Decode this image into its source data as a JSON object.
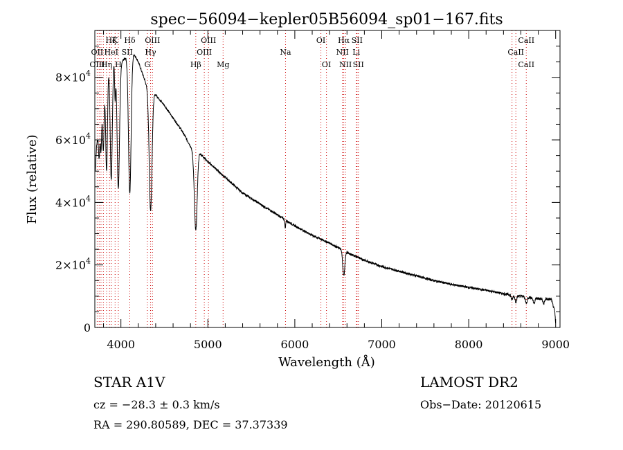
{
  "chart_data": {
    "type": "line",
    "title": "spec−56094−kepler05B56094_sp01−167.fits",
    "xlabel": "Wavelength (Å)",
    "ylabel": "Flux (relative)",
    "xlim": [
      3700,
      9050
    ],
    "ylim": [
      0,
      95000
    ],
    "x_ticks": [
      4000,
      5000,
      6000,
      7000,
      8000,
      9000
    ],
    "x_tick_labels": [
      "4000",
      "5000",
      "6000",
      "7000",
      "8000",
      "9000"
    ],
    "y_ticks": [
      0,
      20000,
      40000,
      60000,
      80000
    ],
    "y_tick_labels": [
      {
        "mant": "0",
        "exp": ""
      },
      {
        "mant": "2×10",
        "exp": "4"
      },
      {
        "mant": "4×10",
        "exp": "4"
      },
      {
        "mant": "6×10",
        "exp": "4"
      },
      {
        "mant": "8×10",
        "exp": "4"
      }
    ],
    "grid": false,
    "line_color": "#000000",
    "line_marker_color": "#cc0000",
    "continuum": [
      [
        3705,
        50000
      ],
      [
        3720,
        58000
      ],
      [
        3740,
        62000
      ],
      [
        3760,
        66000
      ],
      [
        3790,
        72000
      ],
      [
        3820,
        78000
      ],
      [
        3850,
        82000
      ],
      [
        3880,
        85000
      ],
      [
        3920,
        86000
      ],
      [
        3950,
        86000
      ],
      [
        4000,
        85000
      ],
      [
        4050,
        86000
      ],
      [
        4100,
        87000
      ],
      [
        4150,
        87500
      ],
      [
        4200,
        85000
      ],
      [
        4250,
        81000
      ],
      [
        4300,
        77000
      ],
      [
        4350,
        75000
      ],
      [
        4400,
        74500
      ],
      [
        4500,
        71000
      ],
      [
        4600,
        67000
      ],
      [
        4700,
        63000
      ],
      [
        4800,
        58000
      ],
      [
        4830,
        56000
      ],
      [
        4900,
        56000
      ],
      [
        5000,
        53000
      ],
      [
        5100,
        50500
      ],
      [
        5200,
        48000
      ],
      [
        5400,
        43000
      ],
      [
        5600,
        39500
      ],
      [
        5800,
        36000
      ],
      [
        6000,
        32500
      ],
      [
        6200,
        29500
      ],
      [
        6400,
        27000
      ],
      [
        6600,
        24000
      ],
      [
        6800,
        21500
      ],
      [
        7000,
        19500
      ],
      [
        7200,
        18000
      ],
      [
        7400,
        16500
      ],
      [
        7600,
        15000
      ],
      [
        7800,
        13800
      ],
      [
        8000,
        12800
      ],
      [
        8200,
        11900
      ],
      [
        8400,
        10800
      ],
      [
        8600,
        10000
      ],
      [
        8800,
        9200
      ],
      [
        8950,
        9000
      ],
      [
        8990,
        5000
      ],
      [
        9000,
        1000
      ]
    ],
    "absorption_lines": [
      {
        "center": 3750,
        "depth": 10000,
        "width": 7
      },
      {
        "center": 3771,
        "depth": 12000,
        "width": 7
      },
      {
        "center": 3798,
        "depth": 17000,
        "width": 8
      },
      {
        "center": 3835,
        "depth": 30000,
        "width": 10
      },
      {
        "center": 3889,
        "depth": 38000,
        "width": 12
      },
      {
        "center": 3933,
        "depth": 12000,
        "width": 6
      },
      {
        "center": 3970,
        "depth": 41000,
        "width": 14
      },
      {
        "center": 4102,
        "depth": 44000,
        "width": 15
      },
      {
        "center": 4341,
        "depth": 38000,
        "width": 16
      },
      {
        "center": 4861,
        "depth": 25000,
        "width": 16
      },
      {
        "center": 5890,
        "depth": 2500,
        "width": 5
      },
      {
        "center": 6563,
        "depth": 8000,
        "width": 12
      },
      {
        "center": 8498,
        "depth": 1500,
        "width": 10
      },
      {
        "center": 8542,
        "depth": 2000,
        "width": 10
      },
      {
        "center": 8662,
        "depth": 2000,
        "width": 10
      },
      {
        "center": 8750,
        "depth": 1500,
        "width": 10
      },
      {
        "center": 8862,
        "depth": 1500,
        "width": 10
      }
    ],
    "line_markers": [
      3727,
      3750,
      3771,
      3798,
      3835,
      3869,
      3889,
      3933,
      3970,
      4102,
      4304,
      4341,
      4363,
      4861,
      4959,
      5007,
      5175,
      5893,
      6300,
      6364,
      6548,
      6563,
      6583,
      6707,
      6716,
      6731,
      8498,
      8542,
      8662
    ],
    "line_labels": [
      {
        "text": "Hζ",
        "x": 3885,
        "row": 1
      },
      {
        "text": "K",
        "x": 3933,
        "row": 1
      },
      {
        "text": "Hδ",
        "x": 4102,
        "row": 1
      },
      {
        "text": "OIII",
        "x": 4363,
        "row": 1
      },
      {
        "text": "OIII",
        "x": 5007,
        "row": 1
      },
      {
        "text": "OI",
        "x": 6300,
        "row": 1
      },
      {
        "text": "Hα",
        "x": 6563,
        "row": 1
      },
      {
        "text": "SII",
        "x": 6716,
        "row": 1
      },
      {
        "text": "CaII",
        "x": 8662,
        "row": 1
      },
      {
        "text": "OII",
        "x": 3727,
        "row": 2
      },
      {
        "text": "HeI",
        "x": 3889,
        "row": 2
      },
      {
        "text": "SII",
        "x": 4072,
        "row": 2
      },
      {
        "text": "Hγ",
        "x": 4341,
        "row": 2
      },
      {
        "text": "OIII",
        "x": 4959,
        "row": 2
      },
      {
        "text": "NII",
        "x": 6548,
        "row": 2
      },
      {
        "text": "Li",
        "x": 6707,
        "row": 2
      },
      {
        "text": "CaII",
        "x": 8542,
        "row": 2
      },
      {
        "text": "OIII",
        "x": 3727,
        "row": 3
      },
      {
        "text": "Hη",
        "x": 3835,
        "row": 3
      },
      {
        "text": "H",
        "x": 3970,
        "row": 3
      },
      {
        "text": "G",
        "x": 4304,
        "row": 3
      },
      {
        "text": "Hβ",
        "x": 4861,
        "row": 3
      },
      {
        "text": "Mg",
        "x": 5175,
        "row": 3
      },
      {
        "text": "Na",
        "x": 5893,
        "row": 2
      },
      {
        "text": "OI",
        "x": 6364,
        "row": 3
      },
      {
        "text": "NII",
        "x": 6583,
        "row": 3
      },
      {
        "text": "SII",
        "x": 6731,
        "row": 3
      },
      {
        "text": "CaII",
        "x": 8662,
        "row": 3
      }
    ]
  },
  "info": {
    "star": "STAR    A1V",
    "survey": "LAMOST DR2",
    "cz": "cz = −28.3 ± 0.3 km/s",
    "obs_date": "Obs−Date: 20120615",
    "radec": "RA = 290.80589, DEC =  37.37339"
  }
}
